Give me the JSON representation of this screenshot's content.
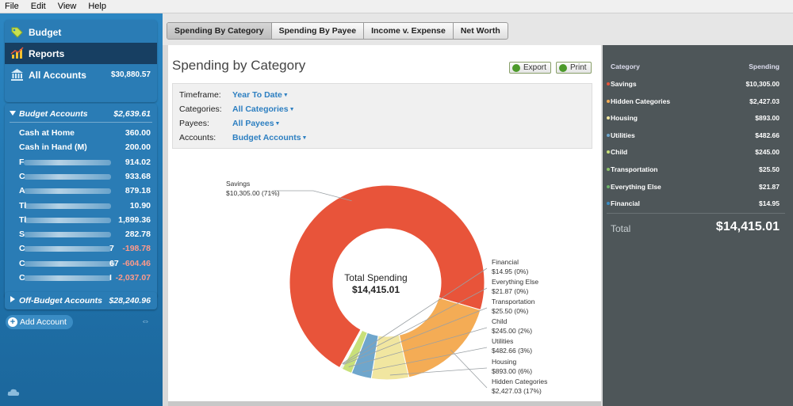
{
  "menu": [
    "File",
    "Edit",
    "View",
    "Help"
  ],
  "nav": {
    "budget": "Budget",
    "reports": "Reports",
    "all_accounts": "All Accounts",
    "all_accounts_amount": "$30,880.57"
  },
  "budget_accounts": {
    "title": "Budget Accounts",
    "amount": "$2,639.61",
    "rows": [
      {
        "name": "Cash at Home",
        "amount": "360.00",
        "neg": false
      },
      {
        "name": "Cash in Hand (M)",
        "amount": "200.00",
        "neg": false
      },
      {
        "name": "F",
        "amount": "914.02",
        "neg": false
      },
      {
        "name": "C",
        "amount": "933.68",
        "neg": false
      },
      {
        "name": "A",
        "amount": "879.18",
        "neg": false
      },
      {
        "name": "Tl",
        "amount": "10.90",
        "neg": false
      },
      {
        "name": "Tl",
        "amount": "1,899.36",
        "neg": false
      },
      {
        "name": "S",
        "amount": "282.78",
        "neg": false
      },
      {
        "name": "C",
        "suffix": "7",
        "amount": "-198.78",
        "neg": true
      },
      {
        "name": "C",
        "suffix": "67",
        "amount": "-604.46",
        "neg": true
      },
      {
        "name": "C",
        "suffix": "I",
        "amount": "-2,037.07",
        "neg": true
      }
    ]
  },
  "off_budget": {
    "title": "Off-Budget Accounts",
    "amount": "$28,240.96"
  },
  "add_account": "Add Account",
  "tabs": [
    "Spending By Category",
    "Spending By Payee",
    "Income v. Expense",
    "Net Worth"
  ],
  "report": {
    "title": "Spending by Category",
    "export": "Export",
    "print": "Print",
    "filters": [
      {
        "label": "Timeframe:",
        "value": "Year To Date"
      },
      {
        "label": "Categories:",
        "value": "All Categories"
      },
      {
        "label": "Payees:",
        "value": "All Payees"
      },
      {
        "label": "Accounts:",
        "value": "Budget Accounts"
      }
    ]
  },
  "chart_data": {
    "type": "pie",
    "center_label": "Total Spending",
    "center_value": "$14,415.01",
    "slices": [
      {
        "name": "Savings",
        "value": 10305.0,
        "label": "$10,305.00 (71%)",
        "color": "#e8543a"
      },
      {
        "name": "Hidden Categories",
        "value": 2427.03,
        "label": "$2,427.03 (17%)",
        "color": "#f4ac55"
      },
      {
        "name": "Housing",
        "value": 893.0,
        "label": "$893.00 (6%)",
        "color": "#f1e6a0"
      },
      {
        "name": "Utilities",
        "value": 482.66,
        "label": "$482.66 (3%)",
        "color": "#6fa6cc"
      },
      {
        "name": "Child",
        "value": 245.0,
        "label": "$245.00 (2%)",
        "color": "#c8e07a"
      },
      {
        "name": "Transportation",
        "value": 25.5,
        "label": "$25.50 (0%)",
        "color": "#8cc06a"
      },
      {
        "name": "Everything Else",
        "value": 21.87,
        "label": "$21.87 (0%)",
        "color": "#4e8a48"
      },
      {
        "name": "Financial",
        "value": 14.95,
        "label": "$14.95 (0%)",
        "color": "#3a6f9a"
      }
    ]
  },
  "summary": {
    "col_category": "Category",
    "col_spending": "Spending",
    "rows": [
      {
        "name": "Savings",
        "amount": "$10,305.00",
        "color": "#e8543a"
      },
      {
        "name": "Hidden Categories",
        "amount": "$2,427.03",
        "color": "#f4ac55"
      },
      {
        "name": "Housing",
        "amount": "$893.00",
        "color": "#f1e6a0"
      },
      {
        "name": "Utilities",
        "amount": "$482.66",
        "color": "#6fa6cc"
      },
      {
        "name": "Child",
        "amount": "$245.00",
        "color": "#c8e07a"
      },
      {
        "name": "Transportation",
        "amount": "$25.50",
        "color": "#8cc06a"
      },
      {
        "name": "Everything Else",
        "amount": "$21.87",
        "color": "#6db26a"
      },
      {
        "name": "Financial",
        "amount": "$14.95",
        "color": "#3a8cc4"
      }
    ],
    "total_label": "Total",
    "total_amount": "$14,415.01"
  }
}
